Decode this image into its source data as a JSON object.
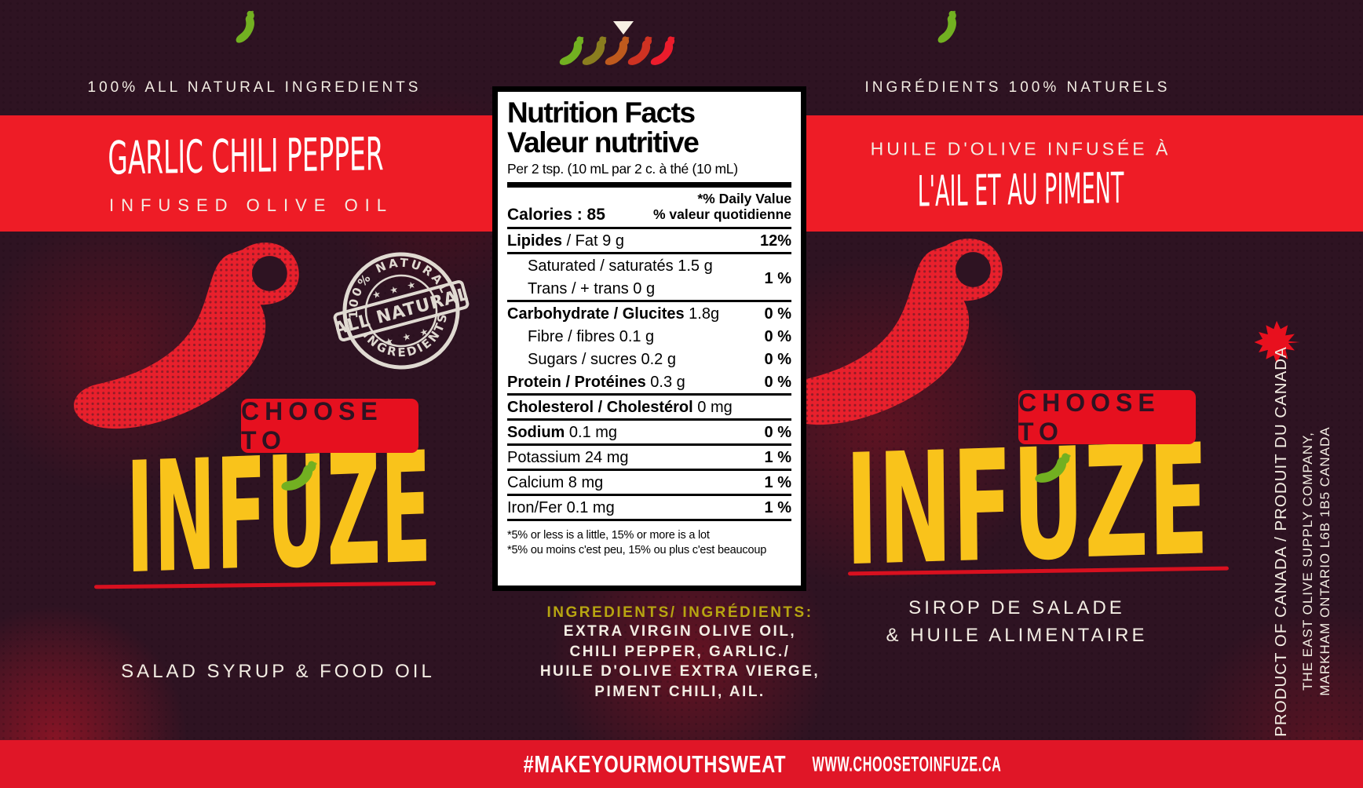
{
  "colors": {
    "background": "#2e1322",
    "band_red": "#ee1c26",
    "footer_red": "#e01627",
    "badge_red": "#e6101f",
    "underline_red": "#d8101f",
    "accent_yellow": "#f9c31b",
    "mustard": "#b7a511",
    "chili_green": "#72b021",
    "pepper_red": "#e8202c",
    "cream": "#f3ede3",
    "maple_red": "#e8101e"
  },
  "top": {
    "left_tagline": "100% ALL NATURAL INGREDIENTS",
    "right_tagline": "INGRÉDIENTS 100% NATURELS",
    "chili_row_colors": [
      "#72b021",
      "#8a7d1f",
      "#bf5a1d",
      "#ce3222",
      "#eb1c2c"
    ]
  },
  "left_panel": {
    "title": "GARLIC CHILI PEPPER",
    "subtitle": "INFUSED OLIVE OIL",
    "choose_to": "CHOOSE TO",
    "brand": "INFUZE",
    "footer": "SALAD SYRUP & FOOD OIL"
  },
  "right_panel": {
    "title": "HUILE D'OLIVE INFUSÉE À",
    "subtitle": "L'AIL ET AU PIMENT",
    "choose_to": "CHOOSE TO",
    "brand": "INFUZE",
    "footer_line1": "SIROP DE SALADE",
    "footer_line2": "& HUILE ALIMENTAIRE"
  },
  "stamp": {
    "arc_top": "100% NATURAL",
    "banner": "ALL NATURAL",
    "arc_bottom": "INGREDIENTS",
    "stars": "★ ★ ★"
  },
  "nutrition_panel": {
    "title_en": "Nutrition Facts",
    "title_fr": "Valeur nutritive",
    "serving": "Per 2 tsp. (10 mL  par 2 c. à thé (10 mL)",
    "dv_header_line1": "*% Daily Value",
    "dv_header_line2": "% valeur quotidienne",
    "calories": "Calories : 85",
    "rows": [
      {
        "bold": "Lipides",
        "text": " / Fat 9 g",
        "dv": "12%",
        "indent": false,
        "rule_after": true
      },
      {
        "bold": "",
        "text": "Saturated / saturatés 1.5 g",
        "dv": "1 %",
        "indent": true,
        "rule_after": false,
        "dv_spans_next": true
      },
      {
        "bold": "",
        "text": "Trans / + trans 0 g",
        "dv": "",
        "indent": true,
        "rule_after": true
      },
      {
        "bold": "Carbohydrate / Glucites",
        "text": " 1.8g",
        "dv": "0 %",
        "indent": false,
        "rule_after": false
      },
      {
        "bold": "",
        "text": "Fibre / fibres 0.1 g",
        "dv": "0 %",
        "indent": true,
        "rule_after": false
      },
      {
        "bold": "",
        "text": "Sugars / sucres 0.2  g",
        "dv": "0 %",
        "indent": true,
        "rule_after": false
      },
      {
        "bold": "Protein / Protéines",
        "text": " 0.3 g",
        "dv": "0 %",
        "indent": false,
        "rule_after": true
      },
      {
        "bold": "Cholesterol / Cholestérol",
        "text": " 0 mg",
        "dv": "",
        "indent": false,
        "rule_after": true
      },
      {
        "bold": "Sodium",
        "text": " 0.1 mg",
        "dv": "0 %",
        "indent": false,
        "rule_after": true
      },
      {
        "bold": "",
        "text": "Potassium 24 mg",
        "dv": "1 %",
        "indent": false,
        "rule_after": true
      },
      {
        "bold": "",
        "text": "Calcium 8 mg",
        "dv": "1 %",
        "indent": false,
        "rule_after": true
      },
      {
        "bold": "",
        "text": "Iron/Fer 0.1  mg",
        "dv": "1 %",
        "indent": false,
        "rule_after": true
      }
    ],
    "footnote_line1": "*5% or less is a little, 15% or more is a lot",
    "footnote_line2": "*5% ou moins c'est peu, 15% ou plus c'est beaucoup"
  },
  "ingredients": {
    "heading": "INGREDIENTS/ INGRÉDIENTS:",
    "lines": [
      "EXTRA VIRGIN OLIVE OIL,",
      "CHILI PEPPER, GARLIC./",
      "HUILE D'OLIVE EXTRA VIERGE,",
      "PIMENT CHILI, AIL."
    ]
  },
  "sidebar": {
    "origin": "PRODUCT OF CANADA / PRODUIT DU CANADA",
    "company_line1": "THE EAST OLIVE SUPPLY COMPANY,",
    "company_line2": "MARKHAM ONTARIO L6B 1B5 CANADA"
  },
  "footer_bar": {
    "hashtag": "#MAKEYOURMOUTHSWEAT",
    "website": "WWW.CHOOSETOINFUZE.CA"
  }
}
